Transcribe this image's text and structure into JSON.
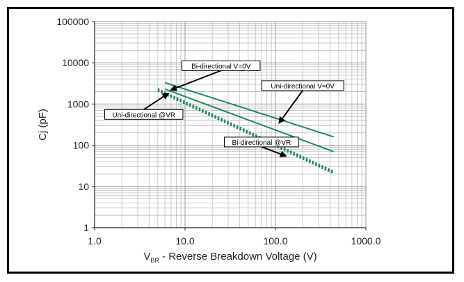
{
  "chart_data": {
    "type": "line",
    "x_scale": "log",
    "y_scale": "log",
    "xlim": [
      1,
      1000
    ],
    "ylim": [
      1,
      100000
    ],
    "grid": true,
    "x_ticks": [
      "1.0",
      "10.0",
      "100.0",
      "1000.0"
    ],
    "y_ticks": [
      "1",
      "10",
      "100",
      "1000",
      "10000",
      "100000"
    ],
    "xlabel_main": "V",
    "xlabel_sub": "BR",
    "xlabel_rest": " - Reverse Breakdown Voltage (V)",
    "ylabel": "Cj (pF)",
    "series": [
      {
        "name": "Bi-directional V=0V",
        "style": "solid",
        "color": "#1e8a5a",
        "x": [
          6,
          440
        ],
        "y": [
          3300,
          160
        ]
      },
      {
        "name": "Uni-directional V=0V",
        "style": "solid",
        "color": "#1e8a5a",
        "x": [
          6,
          440
        ],
        "y": [
          2300,
          70
        ]
      },
      {
        "name": "Uni-directional @VR",
        "style": "dotted",
        "color": "#1e8a5a",
        "x": [
          5,
          440
        ],
        "y": [
          2300,
          23
        ]
      },
      {
        "name": "Bi-directional @VR",
        "style": "dotted",
        "color": "#1e8a5a",
        "x": [
          5,
          440
        ],
        "y": [
          2100,
          21
        ]
      }
    ],
    "annotations": [
      {
        "text": "Bi-directional V=0V",
        "label_at": [
          25,
          8500
        ],
        "arrow_to": [
          7,
          2200
        ]
      },
      {
        "text": "Uni-directional V=0V",
        "label_at": [
          200,
          2800
        ],
        "arrow_to": [
          110,
          350
        ]
      },
      {
        "text": "Uni-directional @VR",
        "label_at": [
          3.5,
          560
        ],
        "arrow_to": [
          6.5,
          1800
        ]
      },
      {
        "text": "Bi-directional @VR",
        "label_at": [
          70,
          120
        ],
        "arrow_to": [
          130,
          55
        ]
      }
    ]
  }
}
